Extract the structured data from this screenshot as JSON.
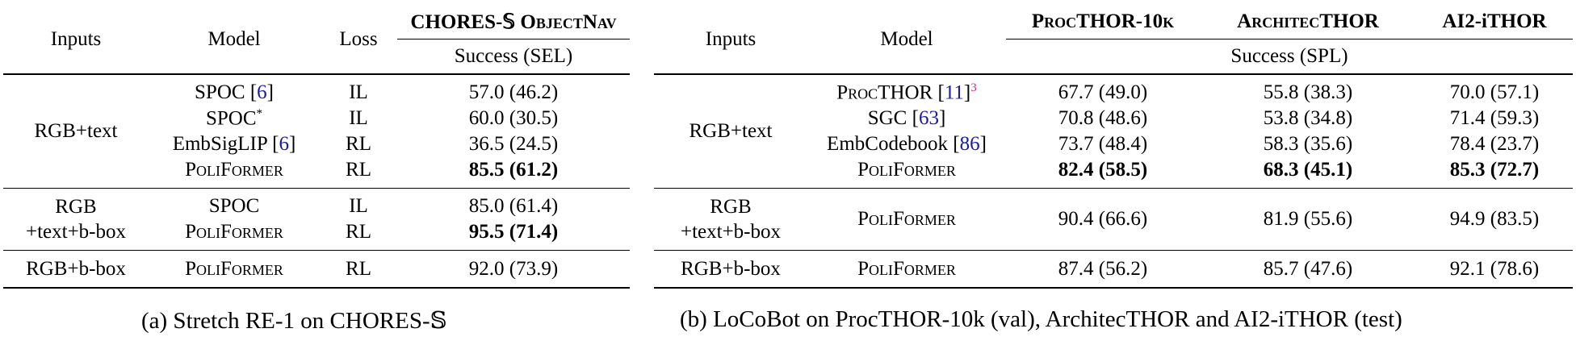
{
  "table_a": {
    "headers": {
      "inputs": "Inputs",
      "model": "Model",
      "loss": "Loss",
      "benchmark": "CHORES-𝕊 ObjectNav",
      "metric": "Success (SEL)"
    },
    "groups": [
      {
        "inputs": "RGB+text",
        "rows": [
          {
            "model": "SPOC",
            "ref": "6",
            "star": "",
            "loss": "IL",
            "success": "57.0",
            "sel": "46.2",
            "bold": false
          },
          {
            "model": "SPOC",
            "ref": "",
            "star": "*",
            "loss": "IL",
            "success": "60.0",
            "sel": "30.5",
            "bold": false
          },
          {
            "model": "EmbSigLIP",
            "ref": "6",
            "star": "",
            "loss": "RL",
            "success": "36.5",
            "sel": "24.5",
            "bold": false
          },
          {
            "model": "PoliFormer",
            "ref": "",
            "star": "",
            "loss": "RL",
            "success": "85.5",
            "sel": "61.2",
            "bold": true
          }
        ]
      },
      {
        "inputs_line1": "RGB",
        "inputs_line2": "+text+b-box",
        "rows": [
          {
            "model": "SPOC",
            "ref": "",
            "star": "",
            "loss": "IL",
            "success": "85.0",
            "sel": "61.4",
            "bold": false
          },
          {
            "model": "PoliFormer",
            "ref": "",
            "star": "",
            "loss": "RL",
            "success": "95.5",
            "sel": "71.4",
            "bold": true
          }
        ]
      },
      {
        "inputs": "RGB+b-box",
        "rows": [
          {
            "model": "PoliFormer",
            "ref": "",
            "star": "",
            "loss": "RL",
            "success": "92.0",
            "sel": "73.9",
            "bold": false
          }
        ]
      }
    ],
    "caption": "(a) Stretch RE-1 on CHORES-𝕊"
  },
  "table_b": {
    "headers": {
      "inputs": "Inputs",
      "model": "Model",
      "bench1": "ProcTHOR-10k",
      "bench2": "ArchitecTHOR",
      "bench3": "AI2-iTHOR",
      "metric": "Success (SPL)"
    },
    "groups": [
      {
        "inputs": "RGB+text",
        "rows": [
          {
            "model": "ProcTHOR",
            "ref": "11",
            "sup": "3",
            "v1": "67.7",
            "s1": "49.0",
            "v2": "55.8",
            "s2": "38.3",
            "v3": "70.0",
            "s3": "57.1",
            "bold": false
          },
          {
            "model": "SGC",
            "ref": "63",
            "sup": "",
            "v1": "70.8",
            "s1": "48.6",
            "v2": "53.8",
            "s2": "34.8",
            "v3": "71.4",
            "s3": "59.3",
            "bold": false
          },
          {
            "model": "EmbCodebook",
            "ref": "86",
            "sup": "",
            "v1": "73.7",
            "s1": "48.4",
            "v2": "58.3",
            "s2": "35.6",
            "v3": "78.4",
            "s3": "23.7",
            "bold": false
          },
          {
            "model": "PoliFormer",
            "ref": "",
            "sup": "",
            "v1": "82.4",
            "s1": "58.5",
            "v2": "68.3",
            "s2": "45.1",
            "v3": "85.3",
            "s3": "72.7",
            "bold": true
          }
        ]
      },
      {
        "inputs_line1": "RGB",
        "inputs_line2": "+text+b-box",
        "rows": [
          {
            "model": "PoliFormer",
            "ref": "",
            "sup": "",
            "v1": "90.4",
            "s1": "66.6",
            "v2": "81.9",
            "s2": "55.6",
            "v3": "94.9",
            "s3": "83.5",
            "bold": false
          }
        ]
      },
      {
        "inputs": "RGB+b-box",
        "rows": [
          {
            "model": "PoliFormer",
            "ref": "",
            "sup": "",
            "v1": "87.4",
            "s1": "56.2",
            "v2": "85.7",
            "s2": "47.6",
            "v3": "92.1",
            "s3": "78.6",
            "bold": false
          }
        ]
      }
    ],
    "caption": "(b) LoCoBot on ProcTHOR-10k (val), ArchitecTHOR and AI2-iTHOR (test)"
  }
}
